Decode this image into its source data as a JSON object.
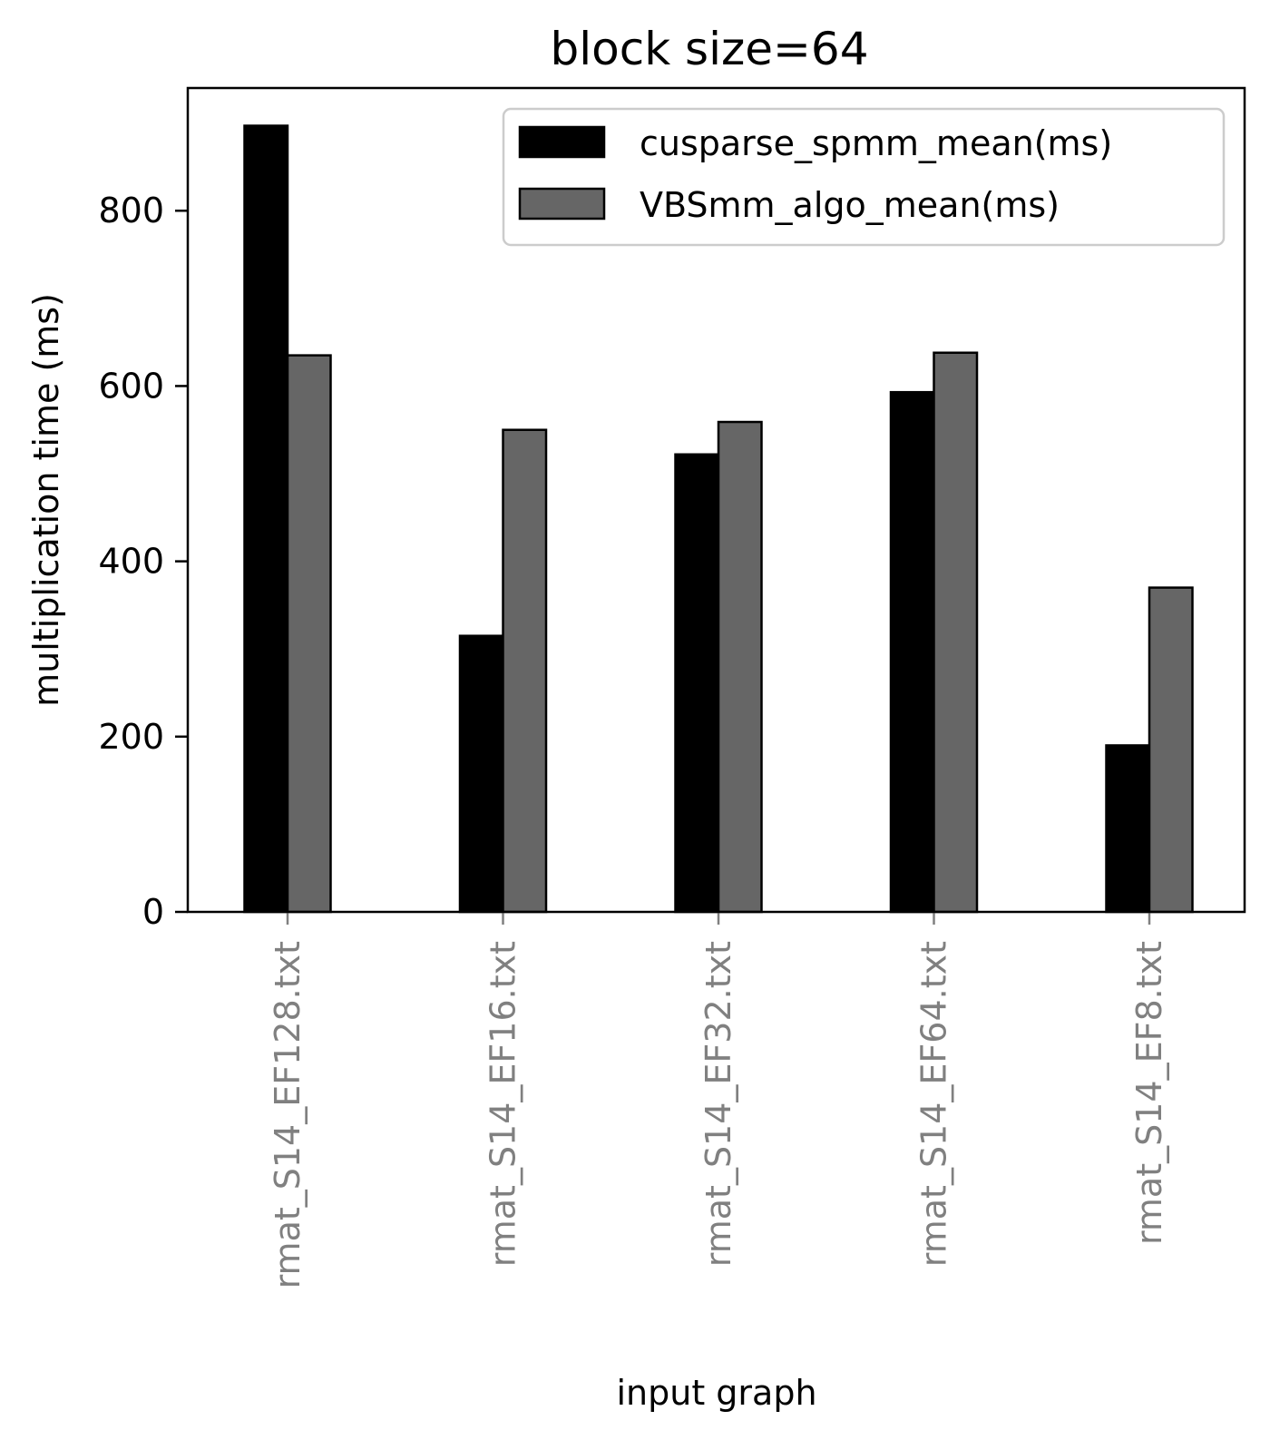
{
  "chart_data": {
    "type": "bar",
    "title": "block size=64",
    "xlabel": "input graph",
    "ylabel": "multiplication time (ms)",
    "categories": [
      "rmat_S14_EF128.txt",
      "rmat_S14_EF16.txt",
      "rmat_S14_EF32.txt",
      "rmat_S14_EF64.txt",
      "rmat_S14_EF8.txt"
    ],
    "series": [
      {
        "name": "cusparse_spmm_mean(ms)",
        "values": [
          897,
          315,
          522,
          593,
          190
        ],
        "color": "#000000"
      },
      {
        "name": "VBSmm_algo_mean(ms)",
        "values": [
          635,
          550,
          559,
          638,
          370
        ],
        "color": "#666666"
      }
    ],
    "ylim": [
      0,
      940
    ],
    "yticks": [
      0,
      200,
      400,
      600,
      800
    ],
    "grid": false,
    "legend_position": "top-right",
    "tick_label_color": "#808080"
  }
}
